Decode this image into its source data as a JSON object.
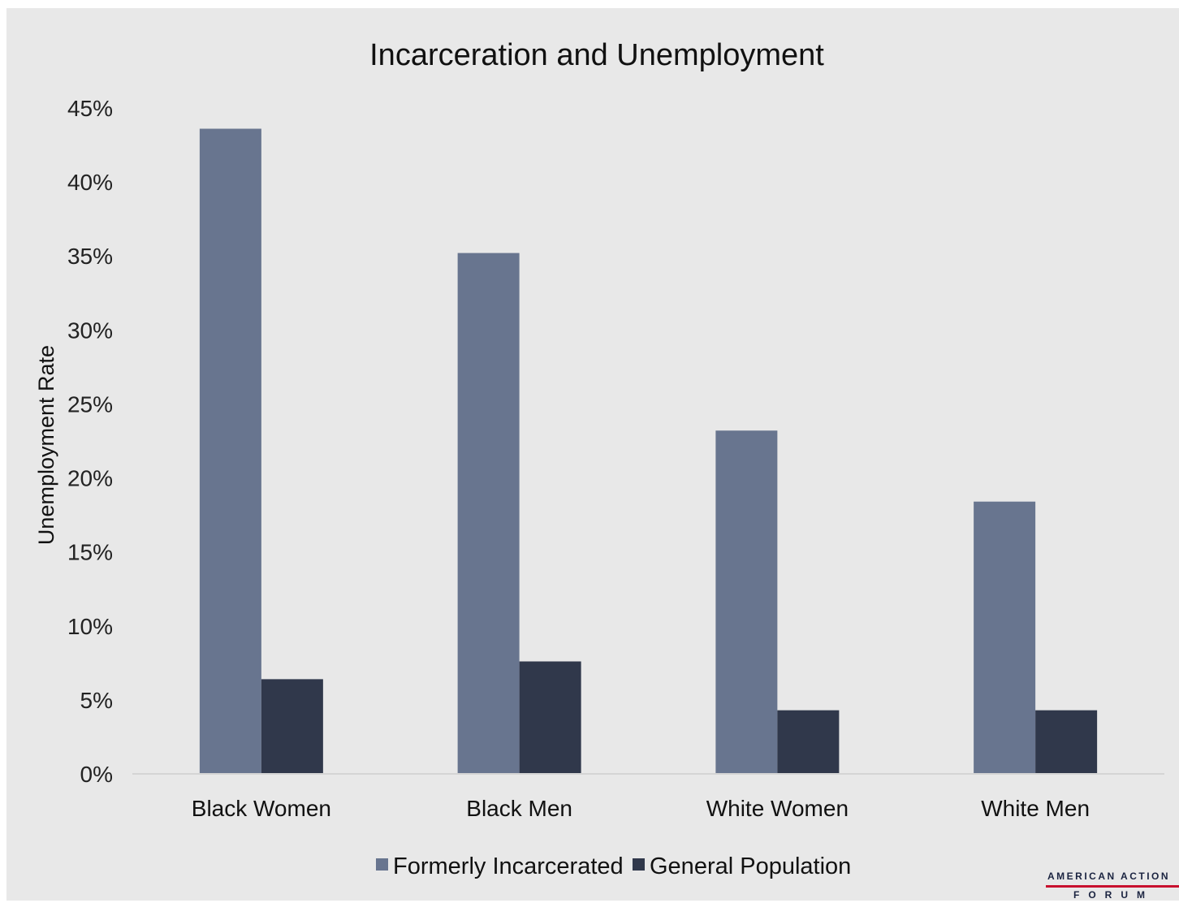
{
  "chart_data": {
    "type": "bar",
    "title": "Incarceration and Unemployment",
    "xlabel": "",
    "ylabel": "Unemployment Rate",
    "ylim": [
      0,
      45
    ],
    "yticks": [
      "0%",
      "5%",
      "10%",
      "15%",
      "20%",
      "25%",
      "30%",
      "35%",
      "40%",
      "45%"
    ],
    "categories": [
      "Black Women",
      "Black Men",
      "White Women",
      "White Men"
    ],
    "series": [
      {
        "name": "Formerly Incarcerated",
        "color": "#68758f",
        "values": [
          43.6,
          35.2,
          23.2,
          18.4
        ]
      },
      {
        "name": "General Population",
        "color": "#30384b",
        "values": [
          6.4,
          7.6,
          4.3,
          4.3
        ]
      }
    ],
    "legend_position": "bottom",
    "grid": false
  },
  "logo": {
    "line1": "AMERICAN ACTION",
    "line2": "FORUM"
  }
}
